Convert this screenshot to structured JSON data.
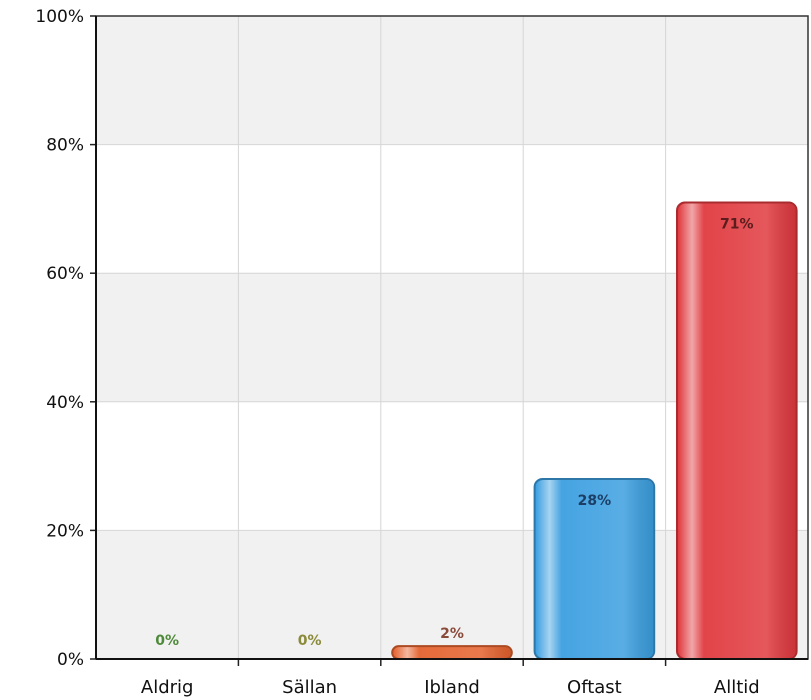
{
  "chart_data": {
    "type": "bar",
    "categories": [
      "Aldrig",
      "Sällan",
      "Ibland",
      "Oftast",
      "Alltid"
    ],
    "values": [
      0,
      0,
      2,
      28,
      71
    ],
    "value_labels": [
      "0%",
      "0%",
      "2%",
      "28%",
      "71%"
    ],
    "colors": [
      "#7fb24a",
      "#c9c46a",
      "#e4622e",
      "#3c9fe0",
      "#e03a3f"
    ],
    "label_colors": [
      "#4f8a3a",
      "#8a8a3a",
      "#8a4a3a",
      "#1c3f66",
      "#5a1c1c"
    ],
    "ylim": [
      0,
      100
    ],
    "yticks": [
      0,
      20,
      40,
      60,
      80,
      100
    ],
    "ytick_labels": [
      "0%",
      "20%",
      "40%",
      "60%",
      "80%",
      "100%"
    ],
    "title": "",
    "xlabel": "",
    "ylabel": "",
    "grid": true,
    "background_bands": [
      "#f1f1f1",
      "#ffffff"
    ]
  }
}
